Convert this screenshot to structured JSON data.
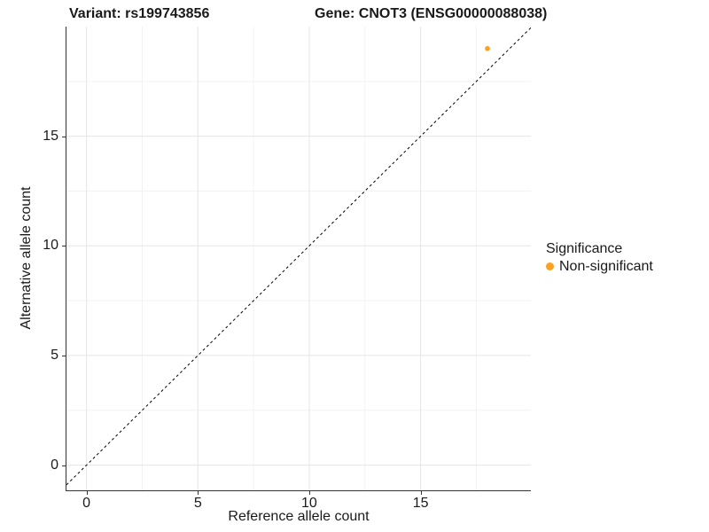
{
  "titles": {
    "variant": "Variant: rs199743856",
    "gene": "Gene: CNOT3 (ENSG00000088038)"
  },
  "chart_data": {
    "type": "scatter",
    "title_left": "Variant: rs199743856",
    "title_right": "Gene: CNOT3 (ENSG00000088038)",
    "xlabel": "Reference allele count",
    "ylabel": "Alternative allele count",
    "xlim": [
      -0.9,
      19.95
    ],
    "ylim": [
      -1.15,
      20.0
    ],
    "xticks": [
      0,
      5,
      10,
      15
    ],
    "yticks": [
      0,
      5,
      10,
      15
    ],
    "xticks_minor": [
      2.5,
      7.5,
      12.5,
      17.5
    ],
    "yticks_minor": [
      2.5,
      7.5,
      12.5,
      17.5
    ],
    "grid": true,
    "identity_line": {
      "style": "dashed",
      "color": "#000000",
      "from": [
        -0.9,
        -0.9
      ],
      "to": [
        19.95,
        19.95
      ]
    },
    "series": [
      {
        "name": "Non-significant",
        "color": "#FFA01E",
        "points": [
          [
            18,
            19
          ]
        ]
      }
    ],
    "legend": {
      "title": "Significance",
      "position": "right",
      "items": [
        {
          "label": "Non-significant",
          "color": "#FFA01E"
        }
      ]
    },
    "colors": {
      "grid_major": "#E5E5E5",
      "grid_minor": "#F2F2F2",
      "axis_line": "#333333",
      "text": "#1a1a1a"
    }
  }
}
